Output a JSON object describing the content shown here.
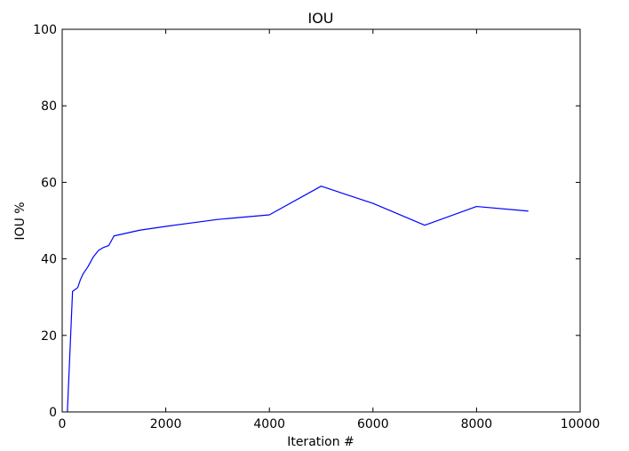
{
  "chart_data": {
    "type": "line",
    "title": "IOU",
    "xlabel": "Iteration #",
    "ylabel": "IOU %",
    "xlim": [
      0,
      10000
    ],
    "ylim": [
      0,
      100
    ],
    "xticks": [
      0,
      2000,
      4000,
      6000,
      8000,
      10000
    ],
    "yticks": [
      0,
      20,
      40,
      60,
      80,
      100
    ],
    "xtick_labels": [
      "0",
      "2000",
      "4000",
      "6000",
      "8000",
      "10000"
    ],
    "ytick_labels": [
      "0",
      "20",
      "40",
      "60",
      "80",
      "100"
    ],
    "grid": false,
    "series": [
      {
        "color": "#0000ff",
        "x": [
          100,
          200,
          300,
          350,
          400,
          500,
          600,
          700,
          800,
          900,
          1000,
          1500,
          2000,
          3000,
          4000,
          5000,
          6000,
          7000,
          8000,
          9000
        ],
        "y": [
          0,
          31.5,
          32.5,
          34.5,
          36,
          38,
          40.5,
          42.2,
          43,
          43.5,
          46,
          47.5,
          48.5,
          50.3,
          51.5,
          59,
          54.5,
          48.8,
          53.7,
          52.5
        ]
      }
    ]
  }
}
